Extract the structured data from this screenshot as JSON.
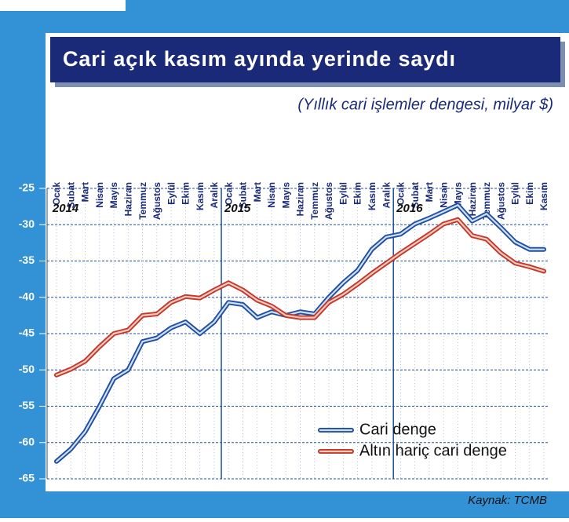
{
  "chart_data": {
    "type": "line",
    "title": "Cari açık kasım ayında yerinde saydı",
    "subtitle": "(Yıllık cari işlemler dengesi, milyar $)",
    "source": "Kaynak: TCMB",
    "year_labels": [
      "2014",
      "2015",
      "2016"
    ],
    "categories": [
      "Ocak",
      "Şubat",
      "Mart",
      "Nisan",
      "Mayıs",
      "Haziran",
      "Temmuz",
      "Ağustos",
      "Eylül",
      "Ekim",
      "Kasım",
      "Aralık",
      "Ocak",
      "Şubat",
      "Mart",
      "Nisan",
      "Mayıs",
      "Haziran",
      "Temmuz",
      "Ağustos",
      "Eylül",
      "Ekim",
      "Kasım",
      "Aralık",
      "Ocak",
      "Şubat",
      "Mart",
      "Nisan",
      "Mayıs",
      "Haziran",
      "Temmuz",
      "Ağustos",
      "Eylül",
      "Ekim",
      "Kasım"
    ],
    "series": [
      {
        "name": "Cari denge",
        "color": "#1f4fa0",
        "values": [
          -62.6,
          -60.9,
          -58.5,
          -55,
          -51.2,
          -50,
          -46.1,
          -45.6,
          -44.2,
          -43.4,
          -45,
          -43.4,
          -40.7,
          -41,
          -42.8,
          -42,
          -42.5,
          -42,
          -42.3,
          -40,
          -38,
          -36.3,
          -33.4,
          -31.7,
          -31.3,
          -29.9,
          -29.1,
          -28.2,
          -27.3,
          -29.5,
          -28.5,
          -30.4,
          -32.4,
          -33.4,
          -33.4
        ]
      },
      {
        "name": "Altın hariç cari denge",
        "color": "#c0392b",
        "values": [
          -50.7,
          -49.9,
          -48.8,
          -46.8,
          -45,
          -44.5,
          -42.5,
          -42.3,
          -40.7,
          -39.9,
          -40.1,
          -39,
          -38,
          -39,
          -40.4,
          -41.2,
          -42.5,
          -42.8,
          -42.8,
          -40.7,
          -39.6,
          -38.2,
          -36.7,
          -35.3,
          -33.9,
          -32.6,
          -31.3,
          -29.9,
          -29.3,
          -31.5,
          -32,
          -33.9,
          -35.3,
          -35.8,
          -36.4
        ]
      }
    ],
    "ylim": [
      -65,
      -25
    ],
    "yticks": [
      -65,
      -60,
      -55,
      -50,
      -45,
      -40,
      -35,
      -30,
      -25
    ],
    "grid": true,
    "legend": "lower right"
  }
}
